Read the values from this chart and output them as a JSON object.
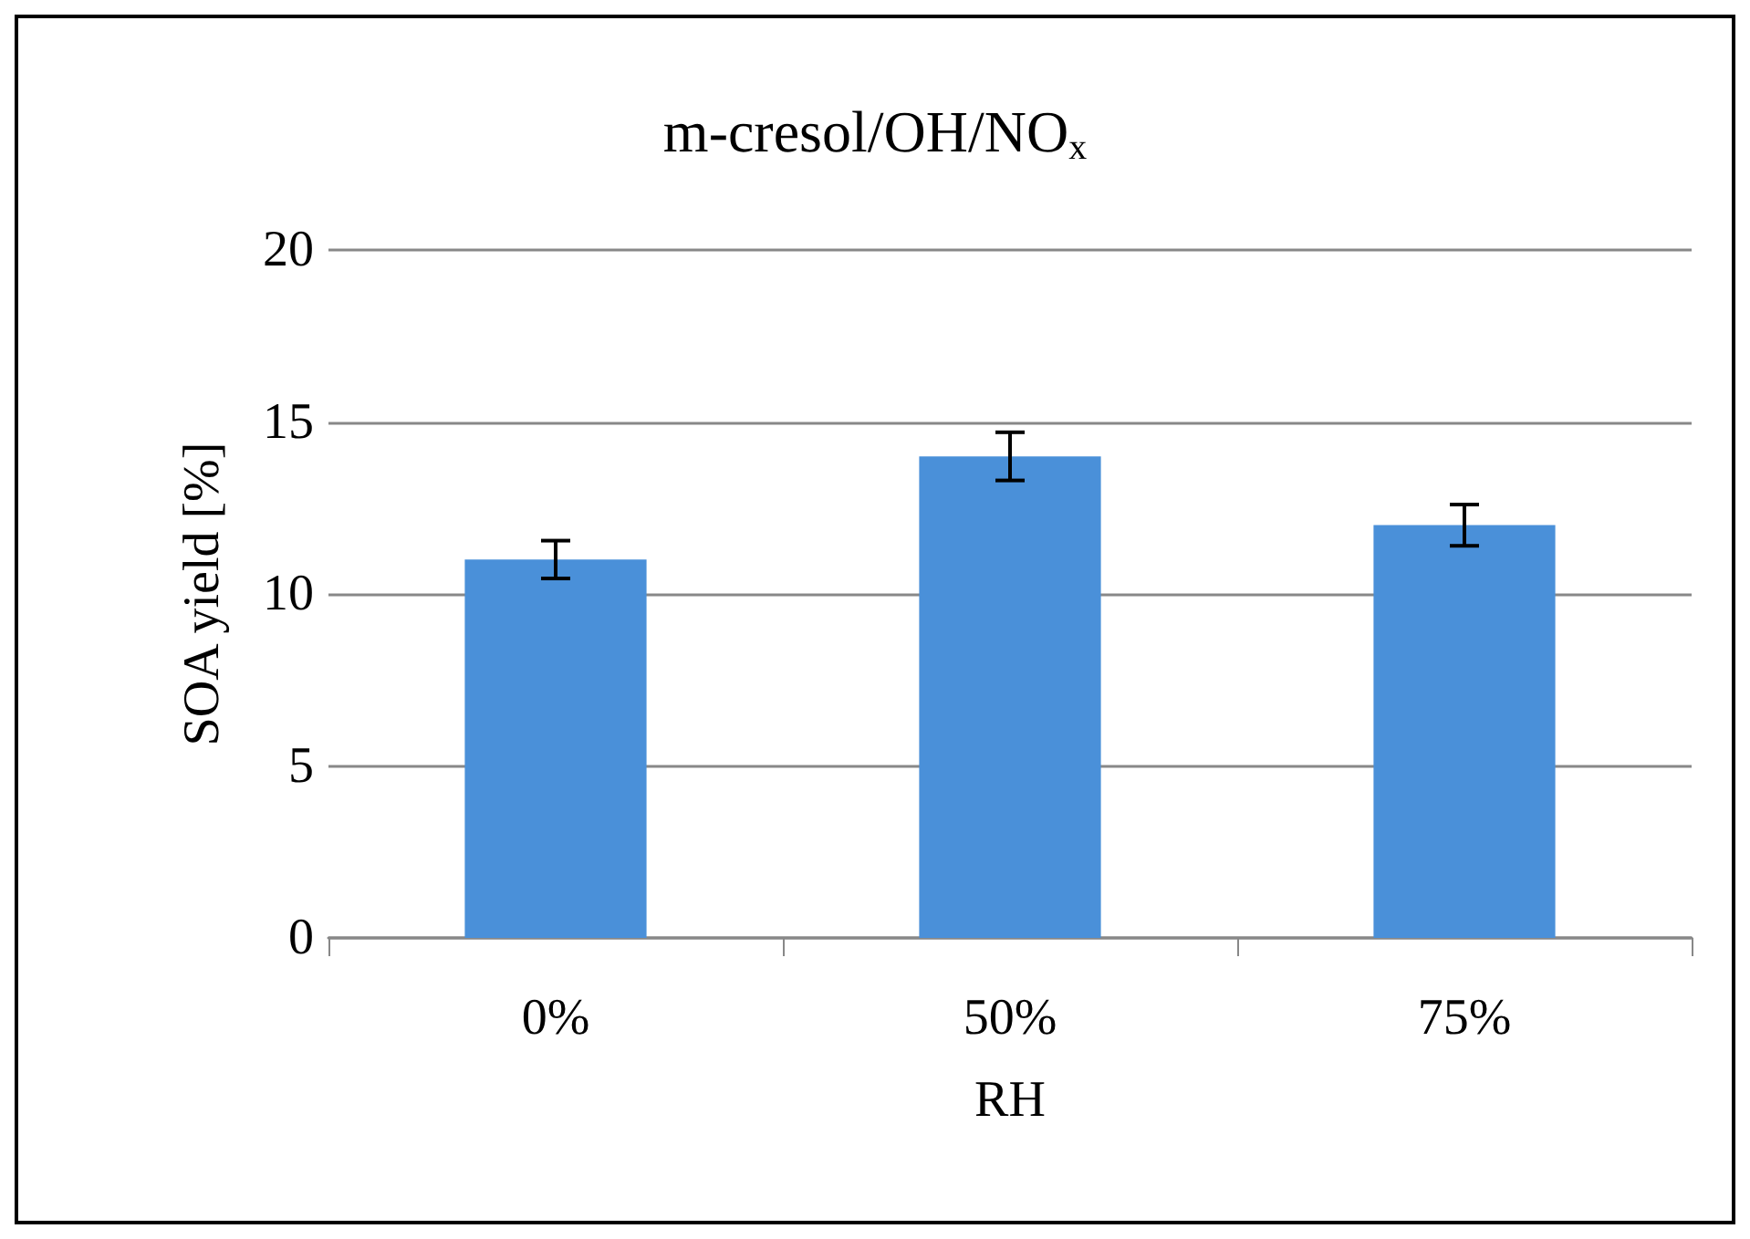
{
  "chart_data": {
    "type": "bar",
    "title": "m-cresol/OH/NO$_{x}$",
    "xlabel": "RH",
    "ylabel": "SOA yield [%]",
    "categories": [
      "0%",
      "50%",
      "75%"
    ],
    "series": [
      {
        "color": "#4a90d9",
        "values": [
          11,
          14,
          12
        ],
        "errors": [
          0.55,
          0.7,
          0.6
        ]
      }
    ],
    "ylim": [
      0,
      20
    ],
    "yticks": [
      0,
      5,
      10,
      15,
      20
    ],
    "grid": "y"
  }
}
